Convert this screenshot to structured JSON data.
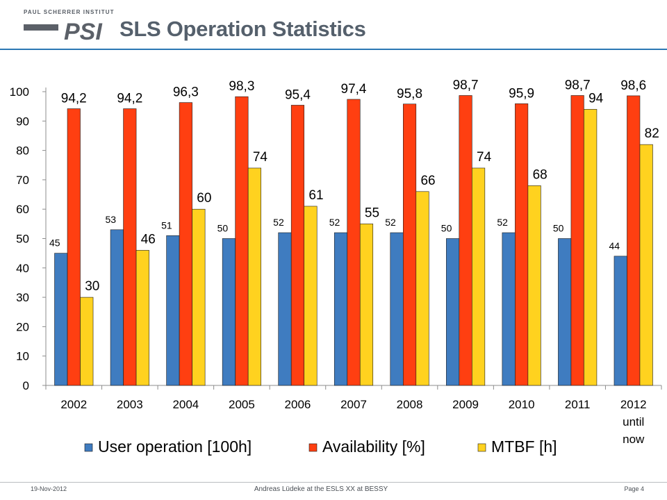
{
  "header": {
    "logo_org": "PAUL SCHERRER INSTITUT",
    "logo_mark": "PSI",
    "title": "SLS Operation Statistics"
  },
  "chart_data": {
    "type": "bar",
    "categories": [
      "2002",
      "2003",
      "2004",
      "2005",
      "2006",
      "2007",
      "2008",
      "2009",
      "2010",
      "2011",
      "2012"
    ],
    "category_sublabels": [
      "",
      "",
      "",
      "",
      "",
      "",
      "",
      "",
      "",
      "",
      "until now"
    ],
    "series": [
      {
        "name": "User operation [100h]",
        "color": "#3f7cc0",
        "values": [
          45,
          53,
          51,
          50,
          52,
          52,
          52,
          50,
          52,
          50,
          44
        ],
        "labels": [
          "45",
          "53",
          "51",
          "50",
          "52",
          "52",
          "52",
          "50",
          "52",
          "50",
          "44"
        ]
      },
      {
        "name": "Availability [%]",
        "color": "#ff3f11",
        "values": [
          94.2,
          94.2,
          96.3,
          98.3,
          95.4,
          97.4,
          95.8,
          98.7,
          95.9,
          98.7,
          98.6
        ],
        "labels": [
          "94,2",
          "94,2",
          "96,3",
          "98,3",
          "95,4",
          "97,4",
          "95,8",
          "98,7",
          "95,9",
          "98,7",
          "98,6"
        ]
      },
      {
        "name": "MTBF [h]",
        "color": "#ffd21f",
        "values": [
          30,
          46,
          60,
          74,
          61,
          55,
          66,
          74,
          68,
          94,
          82
        ],
        "labels": [
          "30",
          "46",
          "60",
          "74",
          "61",
          "55",
          "66",
          "74",
          "68",
          "94",
          "82"
        ]
      }
    ],
    "ylim": [
      0,
      100
    ],
    "yticks": [
      "0",
      "10",
      "20",
      "30",
      "40",
      "50",
      "60",
      "70",
      "80",
      "90",
      "100"
    ],
    "grid": false,
    "legend_position": "bottom"
  },
  "footer": {
    "date": "19-Nov-2012",
    "center": "Andreas Lüdeke at the ESLS XX at BESSY",
    "page": "Page 4"
  }
}
